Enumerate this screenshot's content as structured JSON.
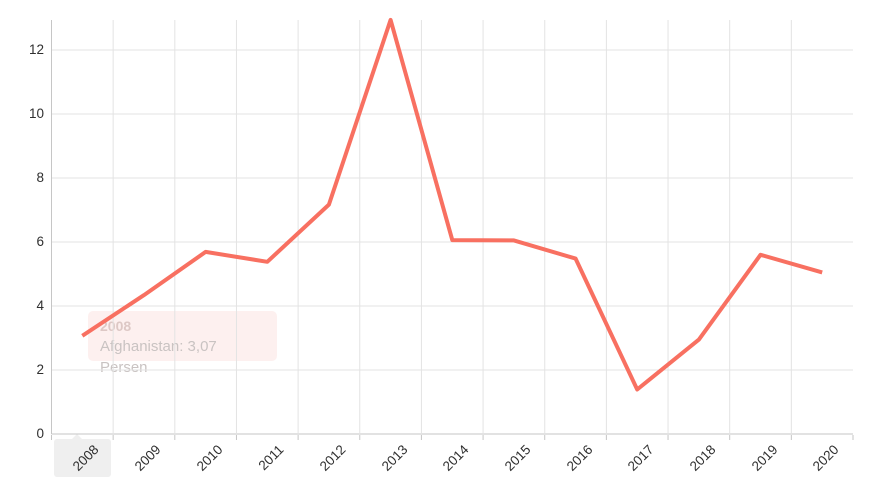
{
  "chart_data": {
    "type": "line",
    "title": "",
    "xlabel": "",
    "ylabel": "",
    "categories": [
      "2008",
      "2009",
      "2010",
      "2011",
      "2012",
      "2013",
      "2014",
      "2015",
      "2016",
      "2017",
      "2018",
      "2019",
      "2020"
    ],
    "series": [
      {
        "name": "Afghanistan",
        "values": [
          3.07,
          4.34,
          5.69,
          5.38,
          7.17,
          12.94,
          6.06,
          6.05,
          5.48,
          1.39,
          2.95,
          5.6,
          5.05
        ]
      }
    ],
    "unit": "Persen",
    "ylim": [
      0,
      13
    ],
    "y_ticks": [
      0,
      2,
      4,
      6,
      8,
      10,
      12
    ],
    "grid": true,
    "legend_position": "none",
    "colors": {
      "line": "#f87061",
      "gridline": "#e3e3e3",
      "axis_line": "#c6c6c6",
      "tick_label": "#2f2f2f"
    }
  },
  "tooltip": {
    "title": "2008",
    "text": "Afghanistan: 3,07 Persen",
    "background": "rgba(253, 238, 237, 0.88)",
    "title_color": "#ddc8c5",
    "text_color": "#c9c3c2"
  },
  "x_axis_highlight": {
    "category": "2008",
    "background": "#efefef"
  }
}
